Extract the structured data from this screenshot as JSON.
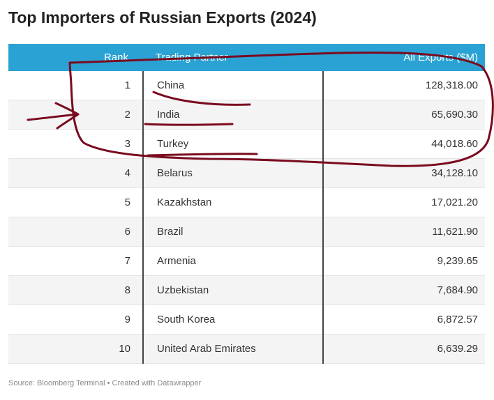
{
  "header": {
    "title": "Top Importers of Russian Exports (2024)"
  },
  "table": {
    "columns": [
      "Rank",
      "Trading Partner",
      "All Exports ($M)"
    ],
    "rows": [
      [
        "1",
        "China",
        "128,318.00"
      ],
      [
        "2",
        "India",
        "65,690.30"
      ],
      [
        "3",
        "Turkey",
        "44,018.60"
      ],
      [
        "4",
        "Belarus",
        "34,128.10"
      ],
      [
        "5",
        "Kazakhstan",
        "17,021.20"
      ],
      [
        "6",
        "Brazil",
        "11,621.90"
      ],
      [
        "7",
        "Armenia",
        "9,239.65"
      ],
      [
        "8",
        "Uzbekistan",
        "7,684.90"
      ],
      [
        "9",
        "South Korea",
        "6,872.57"
      ],
      [
        "10",
        "United Arab Emirates",
        "6,639.29"
      ]
    ]
  },
  "footer": {
    "source": "Source: Bloomberg Terminal • Created with Datawrapper"
  }
}
